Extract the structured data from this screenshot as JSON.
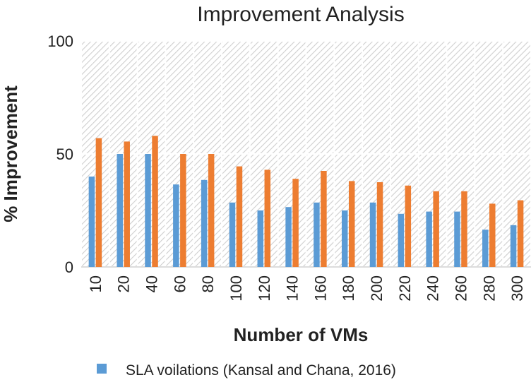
{
  "chart_data": {
    "type": "bar",
    "title": "Improvement Analysis",
    "xlabel": "Number of VMs",
    "ylabel": "% Improvement",
    "categories": [
      "10",
      "20",
      "40",
      "60",
      "80",
      "100",
      "120",
      "140",
      "160",
      "180",
      "200",
      "220",
      "240",
      "260",
      "280",
      "300"
    ],
    "ylim": [
      0,
      100
    ],
    "yticks": [
      0,
      50,
      100
    ],
    "grid": true,
    "legend_position": "bottom",
    "series": [
      {
        "name": "SLA voilations (Kansal and Chana, 2016)",
        "color": "#5b9bd5",
        "values": [
          40,
          50,
          50,
          36.5,
          38.5,
          28.5,
          25,
          26.5,
          28.5,
          25,
          28.5,
          23.5,
          24.5,
          24.5,
          16.5,
          18.5
        ]
      },
      {
        "name": "",
        "color": "#ed7d31",
        "values": [
          57,
          55.5,
          58,
          50,
          50,
          44.5,
          43,
          39,
          42.5,
          38,
          37.5,
          36,
          33.5,
          33.5,
          28,
          29.5
        ]
      }
    ]
  }
}
